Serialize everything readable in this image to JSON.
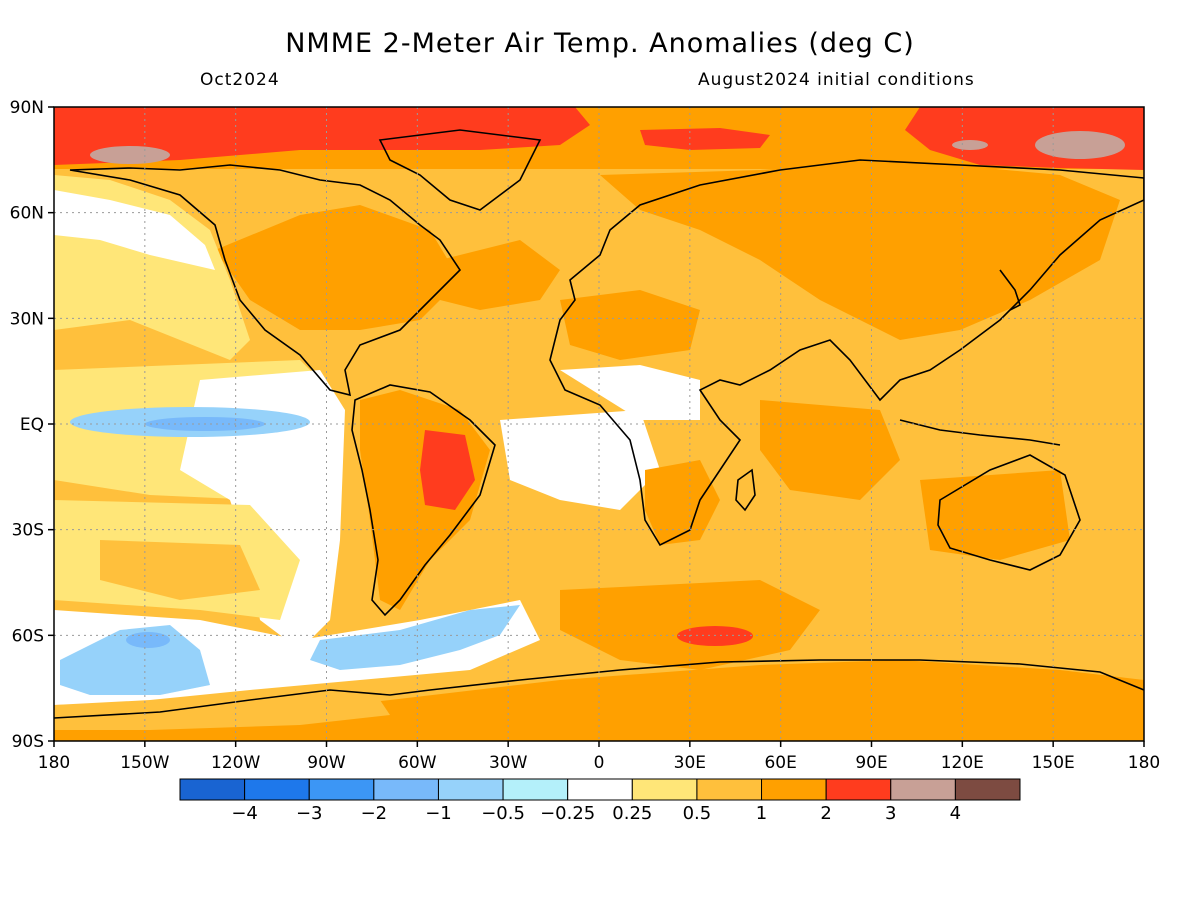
{
  "title": "NMME 2-Meter Air Temp. Anomalies (deg C)",
  "valid_month": "Oct2024",
  "init_conditions": "August2024 initial conditions",
  "map": {
    "projection": "equirectangular",
    "lon_range": [
      -180,
      180
    ],
    "lat_range": [
      -90,
      90
    ],
    "grid": "dotted",
    "lat_ticks": [
      {
        "value": 90,
        "label": "90N"
      },
      {
        "value": 60,
        "label": "60N"
      },
      {
        "value": 30,
        "label": "30N"
      },
      {
        "value": 0,
        "label": "EQ"
      },
      {
        "value": -30,
        "label": "30S"
      },
      {
        "value": -60,
        "label": "60S"
      },
      {
        "value": -90,
        "label": "90S"
      }
    ],
    "lon_ticks": [
      {
        "value": -180,
        "label": "180"
      },
      {
        "value": -150,
        "label": "150W"
      },
      {
        "value": -120,
        "label": "120W"
      },
      {
        "value": -90,
        "label": "90W"
      },
      {
        "value": -60,
        "label": "60W"
      },
      {
        "value": -30,
        "label": "30W"
      },
      {
        "value": 0,
        "label": "0"
      },
      {
        "value": 30,
        "label": "30E"
      },
      {
        "value": 60,
        "label": "60E"
      },
      {
        "value": 90,
        "label": "90E"
      },
      {
        "value": 120,
        "label": "120E"
      },
      {
        "value": 150,
        "label": "150E"
      },
      {
        "value": 180,
        "label": "180"
      }
    ]
  },
  "colorbar": {
    "colors": [
      "#1964d2",
      "#1e78eb",
      "#3c96f5",
      "#78b9fa",
      "#96d2fa",
      "#b4f0fa",
      "#ffffff",
      "#ffe678",
      "#ffc03c",
      "#ffa000",
      "#ff3c1e",
      "#c8a096",
      "#7d4b41"
    ],
    "labels": [
      "−4",
      "−3",
      "−2",
      "−1",
      "−0.5",
      "−0.25",
      "0.25",
      "0.5",
      "1",
      "2",
      "3",
      "4"
    ]
  }
}
